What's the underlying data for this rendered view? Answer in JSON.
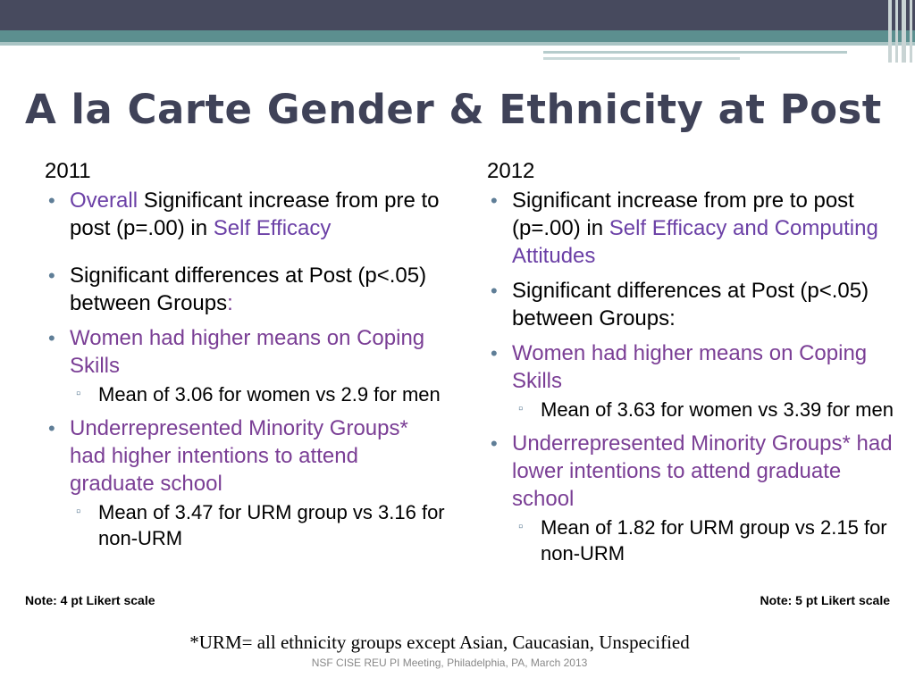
{
  "colors": {
    "bar_dark": "#474a5e",
    "bar_teal": "#5c8f8f",
    "title": "#3f4258",
    "accent_purple": "#7a3e95",
    "accent_violet": "#6b40a6",
    "bullet": "#5f7e97"
  },
  "slide": {
    "title": "A la Carte Gender & Ethnicity at Post"
  },
  "left": {
    "year": "2011",
    "b1_highlight": "Overall",
    "b1_text": " Significant increase from pre to post (p=.00) in ",
    "b1_highlight2": "Self Efficacy",
    "b2_text": "Significant differences at Post (p<.05) between Groups",
    "b2_colon": ":",
    "b3_text": "Women had higher means on Coping Skills",
    "b3_sub": "Mean of 3.06 for women vs 2.9 for men",
    "b4_text": "Underrepresented Minority Groups* had higher intentions to attend graduate school",
    "b4_sub": "Mean of 3.47 for URM group vs 3.16 for non-URM",
    "note": "Note: 4 pt Likert scale"
  },
  "right": {
    "year": "2012",
    "b1_text": "Significant increase from pre to post (p=.00) in ",
    "b1_highlight": "Self Efficacy and Computing Attitudes",
    "b2_text": "Significant differences at Post (p<.05) between Groups:",
    "b3_text": "Women had higher means on Coping Skills",
    "b3_sub": "Mean of 3.63 for women vs 3.39 for men",
    "b4_text": "Underrepresented Minority Groups* had lower intentions to attend graduate school",
    "b4_sub": "Mean of 1.82 for URM group vs 2.15 for non-URM",
    "note": "Note: 5 pt Likert scale"
  },
  "footer": {
    "footnote": "*URM= all ethnicity groups except Asian, Caucasian, Unspecified",
    "credit": "NSF CISE REU PI Meeting, Philadelphia, PA, March 2013"
  },
  "bullets": {
    "main": "•",
    "sub": "▫"
  }
}
